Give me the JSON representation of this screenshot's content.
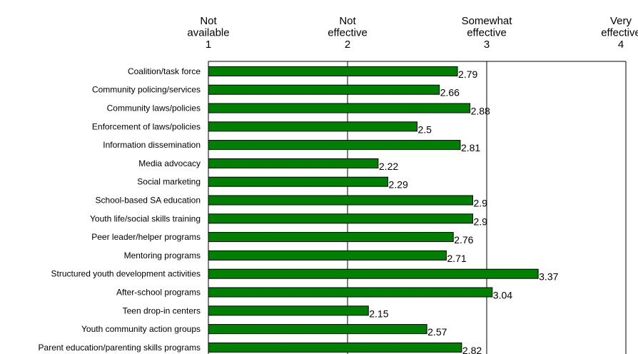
{
  "chart_data": {
    "type": "bar",
    "orientation": "horizontal",
    "title": "",
    "xlabel": "",
    "ylabel": "",
    "xlim": [
      1,
      4
    ],
    "x_ticks": [
      {
        "value": 1,
        "label_lines": [
          "Not",
          "available",
          "1"
        ]
      },
      {
        "value": 2,
        "label_lines": [
          "Not",
          "effective",
          "2"
        ]
      },
      {
        "value": 3,
        "label_lines": [
          "Somewhat",
          "effective",
          "3"
        ]
      },
      {
        "value": 4,
        "label_lines": [
          "Very",
          "effective",
          "4"
        ]
      }
    ],
    "grid": "vertical",
    "bar_color": "#008000",
    "categories": [
      "Coalition/task force",
      "Community policing/services",
      "Community laws/policies",
      "Enforcement of laws/policies",
      "Information dissemination",
      "Media advocacy",
      "Social marketing",
      "School-based SA education",
      "Youth life/social skills training",
      "Peer leader/helper programs",
      "Mentoring programs",
      "Structured youth development activities",
      "After-school programs",
      "Teen drop-in centers",
      "Youth community action groups",
      "Parent education/parenting skills programs"
    ],
    "values": [
      2.79,
      2.66,
      2.88,
      2.5,
      2.81,
      2.22,
      2.29,
      2.9,
      2.9,
      2.76,
      2.71,
      3.37,
      3.04,
      2.15,
      2.57,
      2.82
    ],
    "value_labels": [
      "2.79",
      "2.66",
      "2.88",
      "2.5",
      "2.81",
      "2.22",
      "2.29",
      "2.9",
      "2.9",
      "2.76",
      "2.71",
      "3.37",
      "3.04",
      "2.15",
      "2.57",
      "2.82"
    ]
  }
}
